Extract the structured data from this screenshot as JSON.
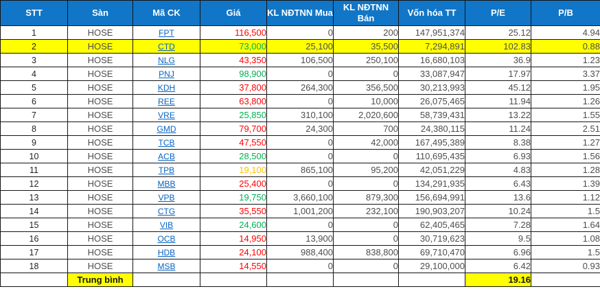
{
  "colors": {
    "header_bg": "#1176C7",
    "header_text": "#FFFFFF",
    "highlight_row": "#FFFF00",
    "border": "#141414",
    "link": "#0563C1",
    "red": "#FF0000",
    "green": "#00B050",
    "orange": "#FFC000"
  },
  "table": {
    "columns": [
      {
        "key": "stt",
        "label": "STT"
      },
      {
        "key": "san",
        "label": "Sàn"
      },
      {
        "key": "ma_ck",
        "label": "Mã CK"
      },
      {
        "key": "gia",
        "label": "Giá"
      },
      {
        "key": "kl_ndtnn_mua",
        "label": "KL NĐTNN Mua"
      },
      {
        "key": "kl_ndtnn_ban",
        "label": "KL NĐTNN Bán"
      },
      {
        "key": "von_hoa_tt",
        "label": "Vốn hóa TT"
      },
      {
        "key": "pe",
        "label": "P/E"
      },
      {
        "key": "pb",
        "label": "P/B"
      }
    ],
    "rows": [
      {
        "stt": "1",
        "exchange": "HOSE",
        "code": "FPT",
        "price": "116,500",
        "price_color": "red",
        "foreign_buy": "0",
        "foreign_sell": "200",
        "market_cap": "147,951,374",
        "pe": "25.12",
        "pb": "4.94",
        "highlight": false
      },
      {
        "stt": "2",
        "exchange": "HOSE",
        "code": "CTD",
        "price": "73,000",
        "price_color": "green",
        "foreign_buy": "25,100",
        "foreign_sell": "35,500",
        "market_cap": "7,294,891",
        "pe": "102.83",
        "pb": "0.88",
        "highlight": true
      },
      {
        "stt": "3",
        "exchange": "HOSE",
        "code": "NLG",
        "price": "43,350",
        "price_color": "red",
        "foreign_buy": "106,500",
        "foreign_sell": "250,100",
        "market_cap": "16,680,103",
        "pe": "36.9",
        "pb": "1.23",
        "highlight": false
      },
      {
        "stt": "4",
        "exchange": "HOSE",
        "code": "PNJ",
        "price": "98,900",
        "price_color": "green",
        "foreign_buy": "0",
        "foreign_sell": "0",
        "market_cap": "33,087,947",
        "pe": "17.97",
        "pb": "3.37",
        "highlight": false
      },
      {
        "stt": "5",
        "exchange": "HOSE",
        "code": "KDH",
        "price": "37,800",
        "price_color": "red",
        "foreign_buy": "264,300",
        "foreign_sell": "356,500",
        "market_cap": "30,213,993",
        "pe": "45.12",
        "pb": "1.95",
        "highlight": false
      },
      {
        "stt": "6",
        "exchange": "HOSE",
        "code": "REE",
        "price": "63,800",
        "price_color": "red",
        "foreign_buy": "0",
        "foreign_sell": "10,000",
        "market_cap": "26,075,465",
        "pe": "11.94",
        "pb": "1.26",
        "highlight": false
      },
      {
        "stt": "7",
        "exchange": "HOSE",
        "code": "VRE",
        "price": "25,850",
        "price_color": "green",
        "foreign_buy": "310,100",
        "foreign_sell": "2,020,600",
        "market_cap": "58,739,431",
        "pe": "13.22",
        "pb": "1.55",
        "highlight": false
      },
      {
        "stt": "8",
        "exchange": "HOSE",
        "code": "GMD",
        "price": "79,700",
        "price_color": "red",
        "foreign_buy": "24,300",
        "foreign_sell": "700",
        "market_cap": "24,380,115",
        "pe": "11.24",
        "pb": "2.51",
        "highlight": false
      },
      {
        "stt": "9",
        "exchange": "HOSE",
        "code": "TCB",
        "price": "47,550",
        "price_color": "red",
        "foreign_buy": "0",
        "foreign_sell": "42,000",
        "market_cap": "167,495,389",
        "pe": "8.38",
        "pb": "1.27",
        "highlight": false
      },
      {
        "stt": "10",
        "exchange": "HOSE",
        "code": "ACB",
        "price": "28,500",
        "price_color": "green",
        "foreign_buy": "0",
        "foreign_sell": "0",
        "market_cap": "110,695,435",
        "pe": "6.93",
        "pb": "1.56",
        "highlight": false
      },
      {
        "stt": "11",
        "exchange": "HOSE",
        "code": "TPB",
        "price": "19,100",
        "price_color": "orange",
        "foreign_buy": "865,100",
        "foreign_sell": "95,200",
        "market_cap": "42,051,229",
        "pe": "4.83",
        "pb": "1.28",
        "highlight": false
      },
      {
        "stt": "12",
        "exchange": "HOSE",
        "code": "MBB",
        "price": "25,400",
        "price_color": "red",
        "foreign_buy": "0",
        "foreign_sell": "0",
        "market_cap": "134,291,935",
        "pe": "6.43",
        "pb": "1.39",
        "highlight": false
      },
      {
        "stt": "13",
        "exchange": "HOSE",
        "code": "VPB",
        "price": "19,750",
        "price_color": "green",
        "foreign_buy": "3,660,100",
        "foreign_sell": "879,300",
        "market_cap": "156,694,991",
        "pe": "13.6",
        "pb": "1.12",
        "highlight": false
      },
      {
        "stt": "14",
        "exchange": "HOSE",
        "code": "CTG",
        "price": "35,550",
        "price_color": "red",
        "foreign_buy": "1,001,200",
        "foreign_sell": "232,100",
        "market_cap": "190,903,207",
        "pe": "10.24",
        "pb": "1.5",
        "highlight": false
      },
      {
        "stt": "15",
        "exchange": "HOSE",
        "code": "VIB",
        "price": "24,600",
        "price_color": "green",
        "foreign_buy": "0",
        "foreign_sell": "0",
        "market_cap": "62,405,465",
        "pe": "7.28",
        "pb": "1.64",
        "highlight": false
      },
      {
        "stt": "16",
        "exchange": "HOSE",
        "code": "OCB",
        "price": "14,950",
        "price_color": "red",
        "foreign_buy": "13,900",
        "foreign_sell": "0",
        "market_cap": "30,719,623",
        "pe": "9.5",
        "pb": "1.08",
        "highlight": false
      },
      {
        "stt": "17",
        "exchange": "HOSE",
        "code": "HDB",
        "price": "24,100",
        "price_color": "red",
        "foreign_buy": "988,400",
        "foreign_sell": "838,800",
        "market_cap": "69,710,470",
        "pe": "6.96",
        "pb": "1.5",
        "highlight": false
      },
      {
        "stt": "18",
        "exchange": "HOSE",
        "code": "MSB",
        "price": "14,550",
        "price_color": "red",
        "foreign_buy": "0",
        "foreign_sell": "0",
        "market_cap": "29,100,000",
        "pe": "6.42",
        "pb": "0.93",
        "highlight": false
      }
    ],
    "summary": {
      "label": "Trung bình",
      "pe": "19.16"
    }
  }
}
